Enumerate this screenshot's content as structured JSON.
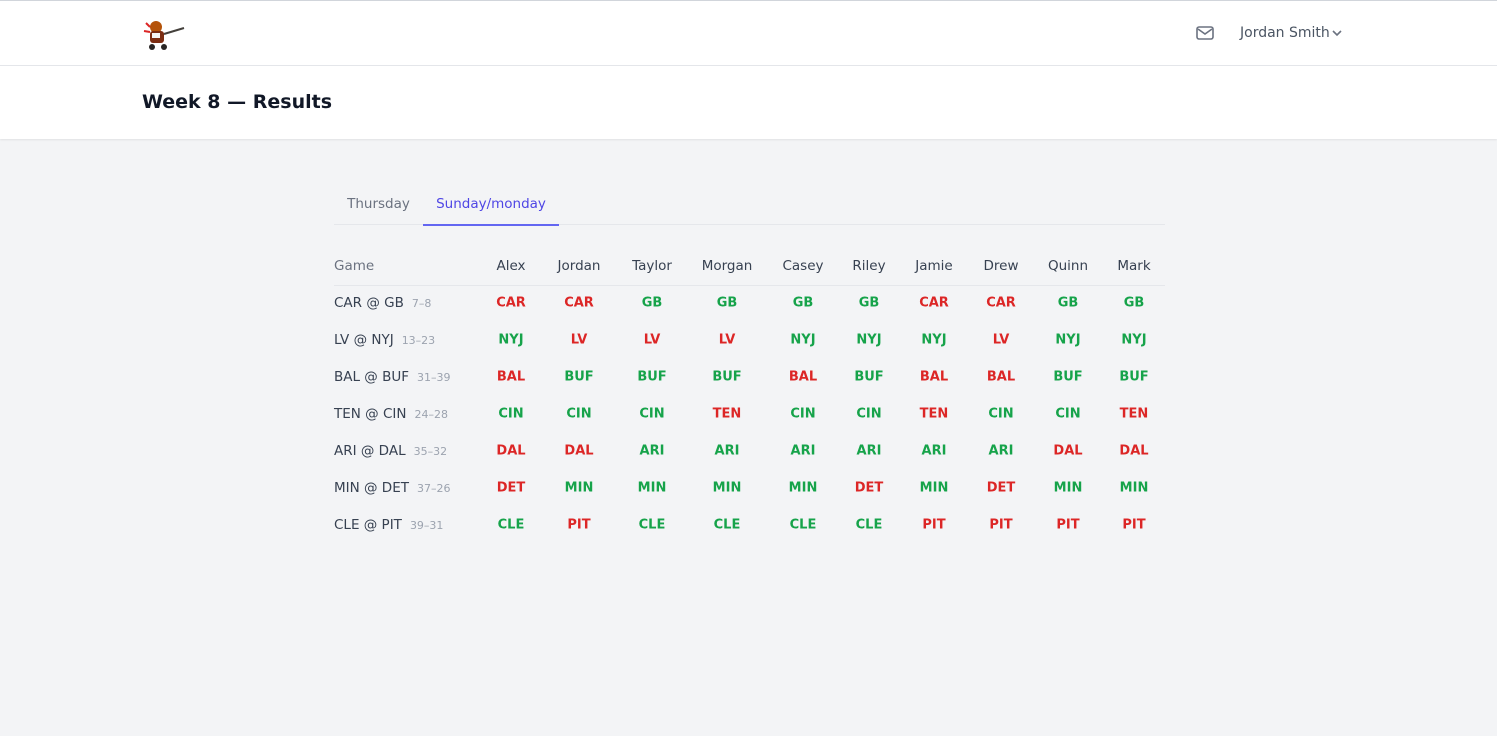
{
  "header": {
    "user_name": "Jordan Smith"
  },
  "page": {
    "title": "Week 8 — Results"
  },
  "tabs": {
    "items": [
      "Thursday",
      "Sunday/monday"
    ],
    "active": 1
  },
  "table": {
    "game_header": "Game",
    "players": [
      "Alex",
      "Jordan",
      "Taylor",
      "Morgan",
      "Casey",
      "Riley",
      "Jamie",
      "Drew",
      "Quinn",
      "Mark"
    ],
    "correct_color": "#16a34a",
    "wrong_color": "#dc2626",
    "rows": [
      {
        "game": "CAR @ GB",
        "score": "7–8",
        "winner": "GB",
        "picks": [
          "CAR",
          "CAR",
          "GB",
          "GB",
          "GB",
          "GB",
          "CAR",
          "CAR",
          "GB",
          "GB"
        ]
      },
      {
        "game": "LV @ NYJ",
        "score": "13–23",
        "winner": "NYJ",
        "picks": [
          "NYJ",
          "LV",
          "LV",
          "LV",
          "NYJ",
          "NYJ",
          "NYJ",
          "LV",
          "NYJ",
          "NYJ"
        ]
      },
      {
        "game": "BAL @ BUF",
        "score": "31–39",
        "winner": "BUF",
        "picks": [
          "BAL",
          "BUF",
          "BUF",
          "BUF",
          "BAL",
          "BUF",
          "BAL",
          "BAL",
          "BUF",
          "BUF"
        ]
      },
      {
        "game": "TEN @ CIN",
        "score": "24–28",
        "winner": "CIN",
        "picks": [
          "CIN",
          "CIN",
          "CIN",
          "TEN",
          "CIN",
          "CIN",
          "TEN",
          "CIN",
          "CIN",
          "TEN"
        ]
      },
      {
        "game": "ARI @ DAL",
        "score": "35–32",
        "winner": "ARI",
        "picks": [
          "DAL",
          "DAL",
          "ARI",
          "ARI",
          "ARI",
          "ARI",
          "ARI",
          "ARI",
          "DAL",
          "DAL"
        ]
      },
      {
        "game": "MIN @ DET",
        "score": "37–26",
        "winner": "MIN",
        "picks": [
          "DET",
          "MIN",
          "MIN",
          "MIN",
          "MIN",
          "DET",
          "MIN",
          "DET",
          "MIN",
          "MIN"
        ]
      },
      {
        "game": "CLE @ PIT",
        "score": "39–31",
        "winner": "CLE",
        "picks": [
          "CLE",
          "PIT",
          "CLE",
          "CLE",
          "CLE",
          "CLE",
          "PIT",
          "PIT",
          "PIT",
          "PIT"
        ]
      }
    ]
  }
}
